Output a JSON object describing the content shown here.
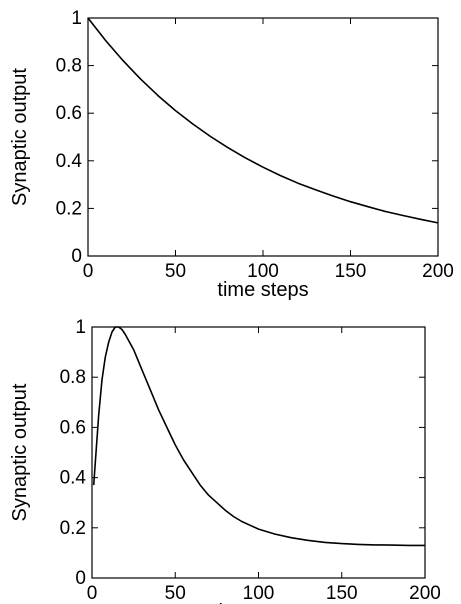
{
  "chart_data": [
    {
      "type": "line",
      "xlabel": "time steps",
      "ylabel": "Synaptic output",
      "xlim": [
        0,
        200
      ],
      "ylim": [
        0,
        1
      ],
      "xticks": [
        "0",
        "50",
        "100",
        "150",
        "200"
      ],
      "yticks": [
        "0",
        "0.2",
        "0.4",
        "0.6",
        "0.8",
        "1"
      ],
      "grid": false,
      "line_color": "#000000",
      "series": [
        {
          "x": [
            0,
            10,
            20,
            30,
            40,
            50,
            60,
            70,
            80,
            90,
            100,
            110,
            120,
            130,
            140,
            150,
            160,
            170,
            180,
            190,
            200
          ],
          "values": [
            1.0,
            0.906,
            0.821,
            0.744,
            0.674,
            0.611,
            0.554,
            0.502,
            0.455,
            0.412,
            0.373,
            0.338,
            0.306,
            0.278,
            0.252,
            0.228,
            0.207,
            0.187,
            0.17,
            0.154,
            0.139
          ]
        }
      ]
    },
    {
      "type": "line",
      "xlabel": "time steps",
      "ylabel": "Synaptic output",
      "xlim": [
        0,
        200
      ],
      "ylim": [
        0,
        1
      ],
      "xticks": [
        "0",
        "50",
        "100",
        "150",
        "200"
      ],
      "yticks": [
        "0",
        "0.2",
        "0.4",
        "0.6",
        "0.8",
        "1"
      ],
      "grid": false,
      "line_color": "#000000",
      "series": [
        {
          "x": [
            1,
            2,
            4,
            6,
            8,
            10,
            12,
            14,
            16,
            18,
            20,
            25,
            30,
            35,
            40,
            45,
            50,
            55,
            60,
            65,
            70,
            75,
            80,
            85,
            90,
            95,
            100,
            110,
            120,
            130,
            140,
            150,
            160,
            170,
            180,
            190,
            200
          ],
          "values": [
            0.37,
            0.46,
            0.65,
            0.79,
            0.88,
            0.94,
            0.98,
            1.0,
            1.0,
            0.99,
            0.97,
            0.91,
            0.83,
            0.75,
            0.67,
            0.6,
            0.53,
            0.47,
            0.42,
            0.37,
            0.33,
            0.3,
            0.27,
            0.245,
            0.225,
            0.21,
            0.195,
            0.175,
            0.16,
            0.15,
            0.142,
            0.137,
            0.134,
            0.132,
            0.131,
            0.13,
            0.13
          ]
        }
      ]
    }
  ]
}
